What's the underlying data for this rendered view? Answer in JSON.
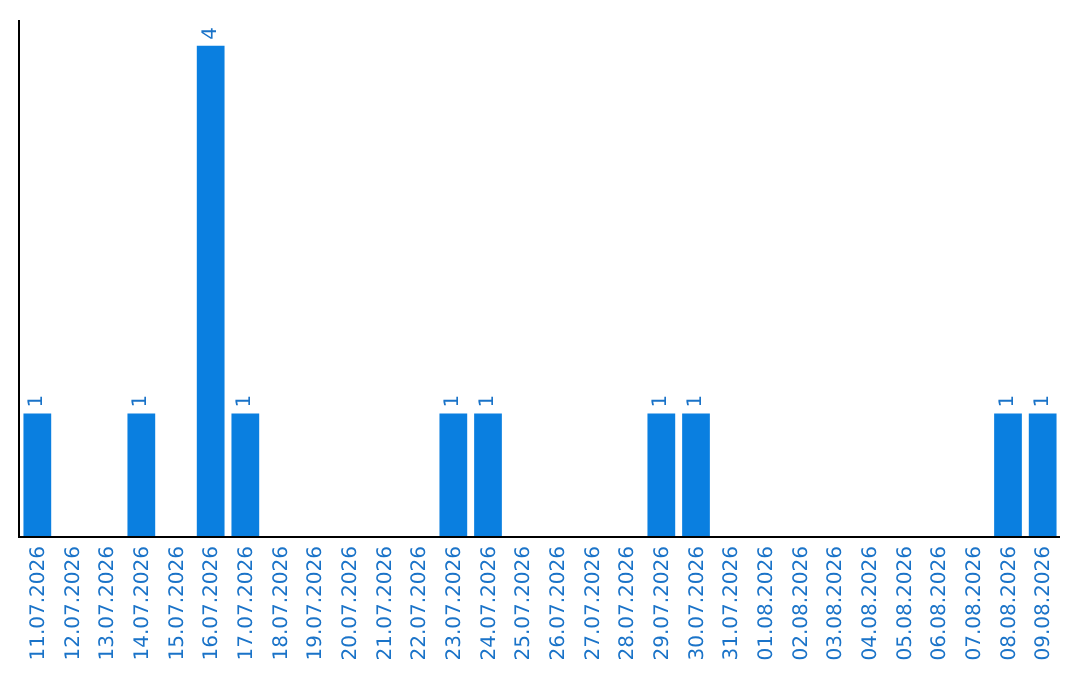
{
  "chart_data": {
    "type": "bar",
    "categories": [
      "11.07.2026",
      "12.07.2026",
      "13.07.2026",
      "14.07.2026",
      "15.07.2026",
      "16.07.2026",
      "17.07.2026",
      "18.07.2026",
      "19.07.2026",
      "20.07.2026",
      "21.07.2026",
      "22.07.2026",
      "23.07.2026",
      "24.07.2026",
      "25.07.2026",
      "26.07.2026",
      "27.07.2026",
      "28.07.2026",
      "29.07.2026",
      "30.07.2026",
      "31.07.2026",
      "01.08.2026",
      "02.08.2026",
      "03.08.2026",
      "04.08.2026",
      "05.08.2026",
      "06.08.2026",
      "07.08.2026",
      "08.08.2026",
      "09.08.2026"
    ],
    "values": [
      1,
      0,
      0,
      1,
      0,
      4,
      1,
      0,
      0,
      0,
      0,
      0,
      1,
      1,
      0,
      0,
      0,
      0,
      1,
      1,
      0,
      0,
      0,
      0,
      0,
      0,
      0,
      0,
      1,
      1
    ],
    "value_labels": [
      "1",
      null,
      null,
      "1",
      null,
      "4",
      "1",
      null,
      null,
      null,
      null,
      null,
      "1",
      "1",
      null,
      null,
      null,
      null,
      "1",
      "1",
      null,
      null,
      null,
      null,
      null,
      null,
      null,
      null,
      "1",
      "1"
    ],
    "color": "#0a7fe0",
    "grid": false,
    "legend": false
  }
}
